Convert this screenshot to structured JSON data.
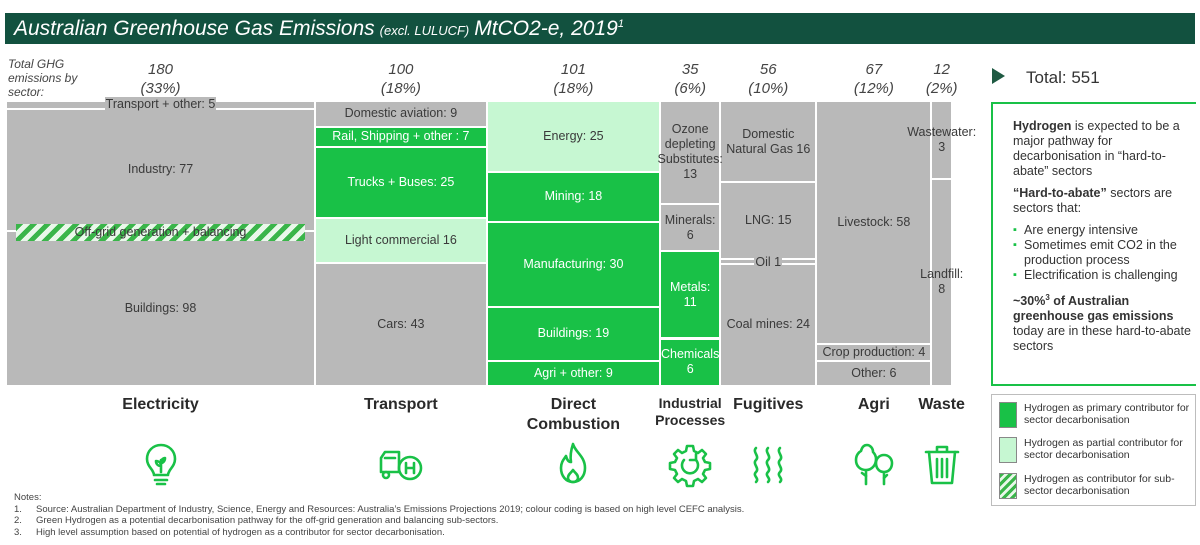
{
  "title": {
    "main": "Australian Greenhouse Gas Emissions",
    "sub": "(excl. LULUCF)",
    "end": "MtCO2-e, 2019",
    "sup": "1"
  },
  "y_label": [
    "Total GHG",
    "emissions by",
    "sector:"
  ],
  "total": "Total: 551",
  "colors": {
    "primary": "#19c147",
    "partial": "#c6f7d2",
    "none": "#b9b9b9",
    "title_bar": "#12513f"
  },
  "chart_data": {
    "type": "mekko",
    "total": 551,
    "sectors": [
      {
        "name": "Electricity",
        "total": "180",
        "share": "(33%)",
        "value": 180,
        "segments": [
          {
            "label": "Transport + other: 5",
            "value": 5,
            "fill": "none"
          },
          {
            "label": "Industry: 77",
            "value": 77,
            "fill": "none"
          },
          {
            "label": "Buildings: 98",
            "value": 98,
            "fill": "none"
          }
        ],
        "overlay": {
          "label": "Off-grid generation + balancing",
          "fill": "hatch"
        }
      },
      {
        "name": "Transport",
        "total": "100",
        "share": "(18%)",
        "value": 100,
        "segments": [
          {
            "label": "Domestic aviation: 9",
            "value": 9,
            "fill": "none"
          },
          {
            "label": "Rail, Shipping + other : 7",
            "value": 7,
            "fill": "primary"
          },
          {
            "label": "Trucks + Buses: 25",
            "value": 25,
            "fill": "primary"
          },
          {
            "label": "Light commercial 16",
            "value": 16,
            "fill": "partial"
          },
          {
            "label": "Cars: 43",
            "value": 43,
            "fill": "none"
          }
        ]
      },
      {
        "name": "Direct Combustion",
        "total": "101",
        "share": "(18%)",
        "value": 101,
        "segments": [
          {
            "label": "Energy: 25",
            "value": 25,
            "fill": "partial"
          },
          {
            "label": "Mining: 18",
            "value": 18,
            "fill": "primary"
          },
          {
            "label": "Manufacturing: 30",
            "value": 30,
            "fill": "primary"
          },
          {
            "label": "Buildings: 19",
            "value": 19,
            "fill": "primary"
          },
          {
            "label": "Agri + other: 9",
            "value": 9,
            "fill": "primary"
          }
        ]
      },
      {
        "name": "Industrial Processes",
        "total": "35",
        "share": "(6%)",
        "value": 35,
        "segments": [
          {
            "label": "Ozone depleting Substitutes: 13",
            "value": 13,
            "fill": "none"
          },
          {
            "label": "Minerals: 6",
            "value": 6,
            "fill": "none"
          },
          {
            "label": "Metals: 11",
            "value": 11,
            "fill": "primary"
          },
          {
            "label": "Chemicals 6",
            "value": 6,
            "fill": "primary"
          }
        ]
      },
      {
        "name": "Fugitives",
        "total": "56",
        "share": "(10%)",
        "value": 56,
        "segments": [
          {
            "label": "Domestic Natural Gas 16",
            "value": 16,
            "fill": "none"
          },
          {
            "label": "LNG: 15",
            "value": 15,
            "fill": "none"
          },
          {
            "label": "Oil 1",
            "value": 1,
            "fill": "none"
          },
          {
            "label": "Coal mines: 24",
            "value": 24,
            "fill": "none"
          }
        ]
      },
      {
        "name": "Agri",
        "total": "67",
        "share": "(12%)",
        "value": 67,
        "segments": [
          {
            "label": "Livestock: 58",
            "value": 58,
            "fill": "none"
          },
          {
            "label": "Crop production: 4",
            "value": 4,
            "fill": "none"
          },
          {
            "label": "Other: 6",
            "value": 6,
            "fill": "none"
          }
        ]
      },
      {
        "name": "Waste",
        "total": "12",
        "share": "(2%)",
        "value": 12,
        "segments": [
          {
            "label": "Wastewater: 3",
            "value": 3,
            "fill": "none"
          },
          {
            "label": "Landfill: 8",
            "value": 8,
            "fill": "none"
          }
        ]
      }
    ]
  },
  "info": {
    "p1_bold": "Hydrogen",
    "p1_rest": " is expected to be a major pathway for decarbonisation in “hard-to-abate” sectors",
    "p2_bold": "“Hard-to-abate”",
    "p2_rest": " sectors are sectors that:",
    "bullets": [
      "Are energy intensive",
      "Sometimes emit CO2 in the production process",
      "Electrification is challenging"
    ],
    "p3_a": "~30%",
    "p3_sup": "3",
    "p3_b": " of Australian greenhouse gas emissions",
    "p3_rest": " today are in these  hard-to-abate sectors"
  },
  "legend": [
    {
      "label": "Hydrogen as primary contributor for sector decarbonisation",
      "fill": "primary"
    },
    {
      "label": "Hydrogen as partial contributor for sector decarbonisation",
      "fill": "partial"
    },
    {
      "label": "Hydrogen as contributor for sub-sector decarbonisation",
      "fill": "hatch"
    }
  ],
  "notes": {
    "heading": "Notes:",
    "items": [
      {
        "num": "1.",
        "text": "Source: Australian Department of Industry, Science, Energy and Resources: Australia’s Emissions Projections 2019; colour coding is based on high level CEFC analysis."
      },
      {
        "num": "2.",
        "text": "Green Hydrogen as a potential decarbonisation pathway for the off-grid generation and balancing sub-sectors."
      },
      {
        "num": "3.",
        "text": "High level assumption based on potential of hydrogen as a contributor for sector decarbonisation."
      }
    ]
  },
  "icons": [
    "bulb-icon",
    "hydrogen-truck-icon",
    "flame-icon",
    "gear-icon",
    "fumes-icon",
    "tree-icon",
    "bin-icon"
  ]
}
